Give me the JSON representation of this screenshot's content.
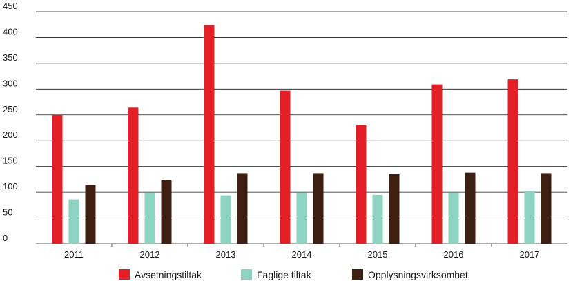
{
  "chart_data": {
    "type": "bar",
    "categories": [
      "2011",
      "2012",
      "2013",
      "2014",
      "2015",
      "2016",
      "2017"
    ],
    "series": [
      {
        "name": "Avsetningstiltak",
        "color": "#e31e24",
        "values": [
          250,
          264,
          424,
          297,
          231,
          309,
          319
        ]
      },
      {
        "name": "Faglige tiltak",
        "color": "#8dd3c1",
        "values": [
          86,
          99,
          94,
          99,
          95,
          99,
          102
        ]
      },
      {
        "name": "Opplysningsvirksomhet",
        "color": "#3d1f12",
        "values": [
          114,
          123,
          137,
          137,
          135,
          138,
          137
        ]
      }
    ],
    "yticks": [
      0,
      50,
      100,
      150,
      200,
      250,
      300,
      350,
      400,
      450
    ],
    "ylim": [
      0,
      450
    ],
    "grid": true,
    "legend_position": "bottom",
    "title": "",
    "xlabel": "",
    "ylabel": ""
  }
}
